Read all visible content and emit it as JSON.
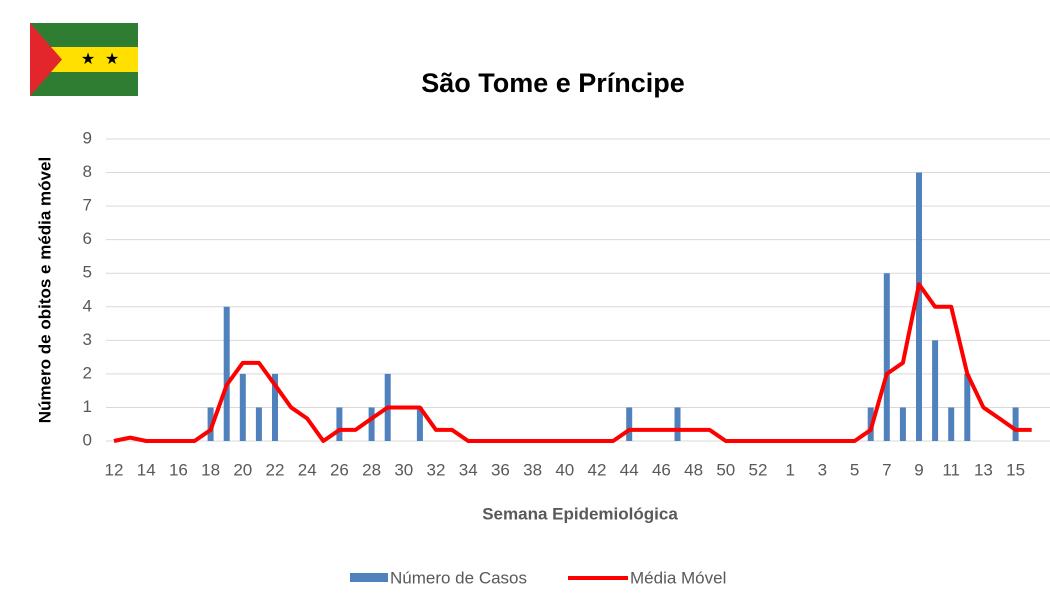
{
  "chart_data": {
    "type": "bar_line",
    "title": "São Tome e Príncipe",
    "xlabel": "Semana Epidemiológica",
    "ylabel": "Número de obitos e média móvel",
    "categories": [
      12,
      null,
      14,
      null,
      16,
      null,
      18,
      null,
      20,
      null,
      22,
      null,
      24,
      null,
      26,
      null,
      28,
      null,
      30,
      null,
      32,
      null,
      34,
      null,
      36,
      null,
      38,
      null,
      40,
      null,
      42,
      null,
      44,
      null,
      46,
      null,
      48,
      null,
      50,
      null,
      52,
      null,
      1,
      null,
      3,
      null,
      5,
      null,
      7,
      null,
      9,
      null,
      11,
      null,
      13,
      null,
      15,
      null
    ],
    "series": [
      {
        "name": "Número de Casos",
        "type": "bar",
        "color": "#4f81bd",
        "values": [
          0,
          0,
          0,
          0,
          0,
          0,
          1,
          4,
          2,
          1,
          2,
          0,
          0,
          0,
          1,
          0,
          1,
          2,
          0,
          1,
          0,
          0,
          0,
          0,
          0,
          0,
          0,
          0,
          0,
          0,
          0,
          0,
          1,
          0,
          0,
          1,
          0,
          0,
          0,
          0,
          0,
          0,
          0,
          0,
          0,
          0,
          0,
          1,
          5,
          1,
          8,
          3,
          1,
          2,
          0,
          0,
          1,
          0
        ]
      },
      {
        "name": "Média Móvel",
        "type": "line",
        "color": "#ff0000",
        "values": [
          0,
          0.1,
          0,
          0,
          0,
          0,
          0.33,
          1.67,
          2.33,
          2.33,
          1.67,
          1,
          0.67,
          0,
          0.33,
          0.33,
          0.67,
          1,
          1,
          1,
          0.33,
          0.33,
          0,
          0,
          0,
          0,
          0,
          0,
          0,
          0,
          0,
          0,
          0.33,
          0.33,
          0.33,
          0.33,
          0.33,
          0.33,
          0,
          0,
          0,
          0,
          0,
          0,
          0,
          0,
          0,
          0.33,
          2,
          2.33,
          4.67,
          4,
          4,
          2,
          1,
          0.67,
          0.33,
          0.33
        ]
      }
    ],
    "ylim": [
      0,
      9
    ],
    "yticks": [
      0,
      1,
      2,
      3,
      4,
      5,
      6,
      7,
      8,
      9
    ],
    "grid": true
  }
}
